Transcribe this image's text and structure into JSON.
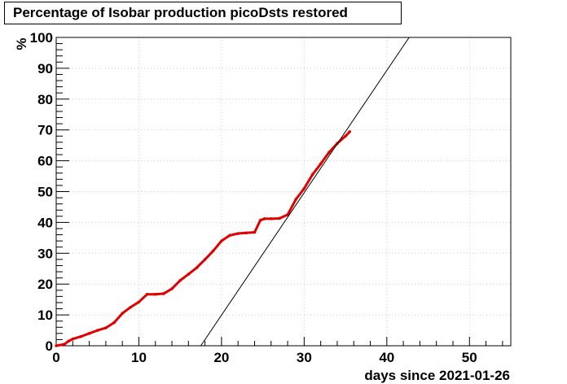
{
  "chart_data": {
    "type": "line",
    "title": "Percentage of Isobar production picoDsts restored",
    "xlabel": "days since 2021-01-26",
    "ylabel": "%",
    "xlim": [
      0,
      55
    ],
    "ylim": [
      0,
      100
    ],
    "xticks": [
      "0",
      "10",
      "20",
      "30",
      "40",
      "50"
    ],
    "yticks": [
      "0",
      "10",
      "20",
      "30",
      "40",
      "50",
      "60",
      "70",
      "80",
      "90",
      "100"
    ],
    "grid": true,
    "legend": "none",
    "series": [
      {
        "color": "#e00000",
        "style": "thick-markers",
        "x": [
          0,
          1,
          1.5,
          2,
          3,
          4,
          5,
          6,
          7,
          8,
          9,
          10,
          11,
          12,
          13,
          14,
          15,
          16,
          17,
          18,
          19,
          20,
          21,
          22,
          23,
          24,
          24.7,
          25.2,
          26,
          27,
          28,
          29,
          30,
          31,
          32,
          33,
          34,
          35,
          35.5
        ],
        "y": [
          0,
          0.5,
          1.5,
          2.2,
          3,
          4,
          5,
          5.8,
          7.5,
          10.5,
          12.5,
          14.2,
          16.7,
          16.7,
          16.9,
          18.5,
          21.2,
          23.2,
          25.3,
          28,
          30.8,
          34,
          35.8,
          36.4,
          36.6,
          36.8,
          40.7,
          41.2,
          41.2,
          41.3,
          42.5,
          47.5,
          51,
          55.5,
          59,
          62.7,
          65.6,
          68,
          69.4
        ]
      },
      {
        "color": "#000000",
        "style": "thin-line",
        "x": [
          17.5,
          42.7
        ],
        "y": [
          0,
          100
        ]
      }
    ]
  }
}
